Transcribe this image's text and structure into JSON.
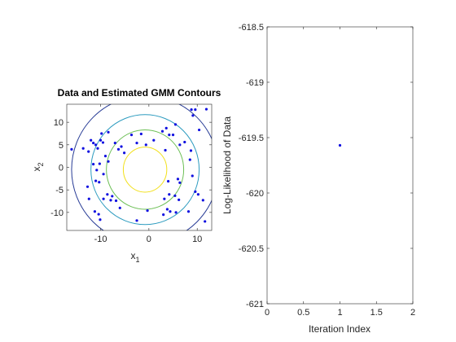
{
  "chart_data": [
    {
      "type": "scatter",
      "title": "Data and Estimated GMM Contours",
      "xlabel": "x",
      "xlabel_sub": "1",
      "ylabel": "x",
      "ylabel_sub": "2",
      "xlim": [
        -17,
        13
      ],
      "ylim": [
        -14,
        14
      ],
      "xticks": [
        -10,
        0,
        10
      ],
      "yticks": [
        -10,
        -5,
        0,
        5,
        10
      ],
      "grid": false,
      "marker_color": "#1010e0",
      "points": [
        [
          -16,
          4
        ],
        [
          -13.6,
          4.2
        ],
        [
          -12.5,
          3.5
        ],
        [
          -12,
          6
        ],
        [
          -11.5,
          5.4
        ],
        [
          -11,
          5
        ],
        [
          -10.6,
          4.2
        ],
        [
          -10,
          6
        ],
        [
          -9.5,
          5.5
        ],
        [
          -9,
          2.5
        ],
        [
          -8.4,
          1.3
        ],
        [
          -10.2,
          0.8
        ],
        [
          -10.8,
          -0.6
        ],
        [
          -11.5,
          0.7
        ],
        [
          -9.4,
          -1.5
        ],
        [
          -11,
          -3
        ],
        [
          -10.3,
          -3.3
        ],
        [
          -12.7,
          -4.3
        ],
        [
          -12.4,
          -7
        ],
        [
          -9.4,
          -7
        ],
        [
          -8.6,
          -6
        ],
        [
          -7.6,
          -6.4
        ],
        [
          -7.9,
          -7.3
        ],
        [
          -6.8,
          -7.4
        ],
        [
          -11.2,
          -9.8
        ],
        [
          -10.4,
          -10.4
        ],
        [
          -10.1,
          -11.6
        ],
        [
          -6,
          -9
        ],
        [
          -9.8,
          7.5
        ],
        [
          -8.4,
          7.8
        ],
        [
          -7,
          5.4
        ],
        [
          -6.3,
          4
        ],
        [
          -5.7,
          4.6
        ],
        [
          -5.1,
          3.2
        ],
        [
          -3.6,
          7.2
        ],
        [
          -2.5,
          5.4
        ],
        [
          -1.6,
          7.4
        ],
        [
          -0.6,
          5
        ],
        [
          1,
          6
        ],
        [
          3.4,
          3.8
        ],
        [
          2.8,
          8
        ],
        [
          3.6,
          8.7
        ],
        [
          4.2,
          7.2
        ],
        [
          5,
          7.2
        ],
        [
          5.5,
          9.5
        ],
        [
          6.4,
          5
        ],
        [
          7.4,
          5.6
        ],
        [
          8.5,
          1.7
        ],
        [
          8.7,
          3.7
        ],
        [
          9.1,
          11.5
        ],
        [
          10.4,
          8.3
        ],
        [
          8.8,
          12.8
        ],
        [
          9.6,
          12.8
        ],
        [
          11.9,
          12.9
        ],
        [
          9,
          -1.9
        ],
        [
          6,
          -2.6
        ],
        [
          4,
          -3.1
        ],
        [
          6.4,
          -3.4
        ],
        [
          4.2,
          -6
        ],
        [
          5.4,
          -6.3
        ],
        [
          6.2,
          -7.2
        ],
        [
          3.2,
          -7
        ],
        [
          3.8,
          -9.3
        ],
        [
          4.4,
          -9.8
        ],
        [
          3,
          -10.5
        ],
        [
          5.6,
          -10
        ],
        [
          8.2,
          -9.8
        ],
        [
          10.2,
          -6
        ],
        [
          11.2,
          -7.3
        ],
        [
          9.6,
          -5.4
        ],
        [
          11.6,
          -12
        ],
        [
          -2.5,
          -11.8
        ],
        [
          -0.3,
          -9.6
        ]
      ],
      "contours": [
        {
          "rx": 4.5,
          "ry": 5.0,
          "color": "#f2e01a"
        },
        {
          "rx": 8.0,
          "ry": 8.8,
          "color": "#6cbf55"
        },
        {
          "rx": 11.2,
          "ry": 12.2,
          "color": "#2c9bbf"
        },
        {
          "rx": 15.2,
          "ry": 16.4,
          "color": "#283c96"
        }
      ],
      "contour_center": [
        -0.8,
        -0.5
      ]
    },
    {
      "type": "scatter",
      "title": "",
      "xlabel": "Iteration Index",
      "ylabel": "Log-Likelihood of Data",
      "xlim": [
        0,
        2
      ],
      "ylim": [
        -621,
        -618.5
      ],
      "xticks": [
        0,
        0.5,
        1,
        1.5,
        2
      ],
      "yticks": [
        -621,
        -620.5,
        -620,
        -619.5,
        -619,
        -618.5
      ],
      "grid": false,
      "marker_color": "#1010e0",
      "points": [
        [
          1,
          -619.57
        ]
      ]
    }
  ]
}
